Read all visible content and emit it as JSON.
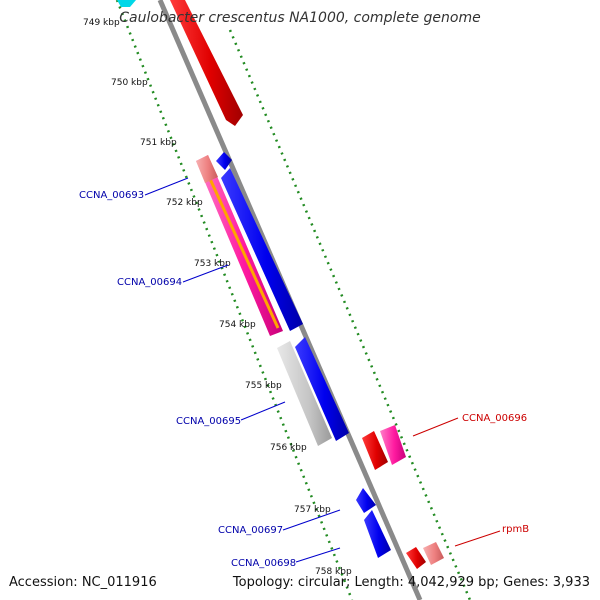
{
  "title": "Caulobacter crescentus NA1000, complete genome",
  "footer": {
    "accession": "Accession: NC_011916",
    "summary": "Topology: circular; Length: 4,042,929 bp; Genes: 3,933"
  },
  "ticks": [
    "749 kbp",
    "750 kbp",
    "751 kbp",
    "752 kbp",
    "753 kbp",
    "754 kbp",
    "755 kbp",
    "756 kbp",
    "757 kbp",
    "758 kbp"
  ],
  "labels": {
    "ccna_00693": "CCNA_00693",
    "ccna_00694": "CCNA_00694",
    "ccna_00695": "CCNA_00695",
    "ccna_00696": "CCNA_00696",
    "ccna_00697": "CCNA_00697",
    "ccna_00698": "CCNA_00698",
    "rpmB": "rpmB"
  },
  "colors": {
    "backbone": "#8a8a8a",
    "tick_line": "#228b22",
    "forward_cds": "#e00000",
    "reverse_cds": "#0000ee",
    "trna": "#e83e8c",
    "rrna": "#c0c0c0",
    "highlight": "#ffa500",
    "left_label": "#0000aa",
    "right_label": "#cc0000"
  }
}
